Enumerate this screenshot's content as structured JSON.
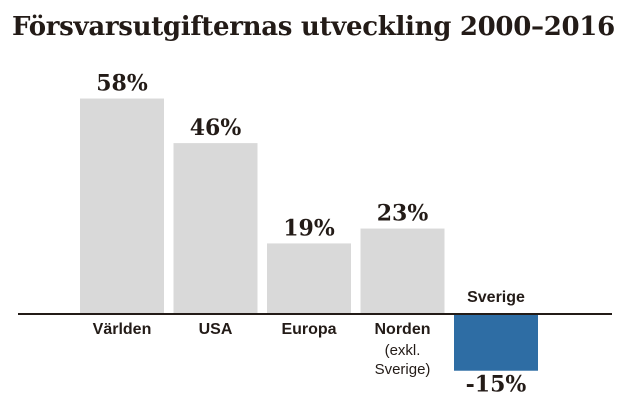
{
  "chart_data": {
    "type": "bar",
    "title": "Försvarsutgifternas utveckling 2000–2016",
    "xlabel": "",
    "ylabel": "",
    "ylim": [
      -20,
      65
    ],
    "grid": false,
    "legend": "none",
    "categories": [
      "Världen",
      "USA",
      "Europa",
      "Norden",
      "Sverige"
    ],
    "category_sublabels": [
      "",
      "",
      "",
      "(exkl. Sverige)",
      ""
    ],
    "values": [
      58,
      46,
      19,
      23,
      -15
    ],
    "value_labels": [
      "58%",
      "46%",
      "19%",
      "23%",
      "-15%"
    ],
    "colors": {
      "default_bar": "#d9d9d9",
      "highlight_bar": "#2e6da4",
      "baseline": "#231b17",
      "text": "#231b17"
    },
    "highlight_index": 4
  }
}
